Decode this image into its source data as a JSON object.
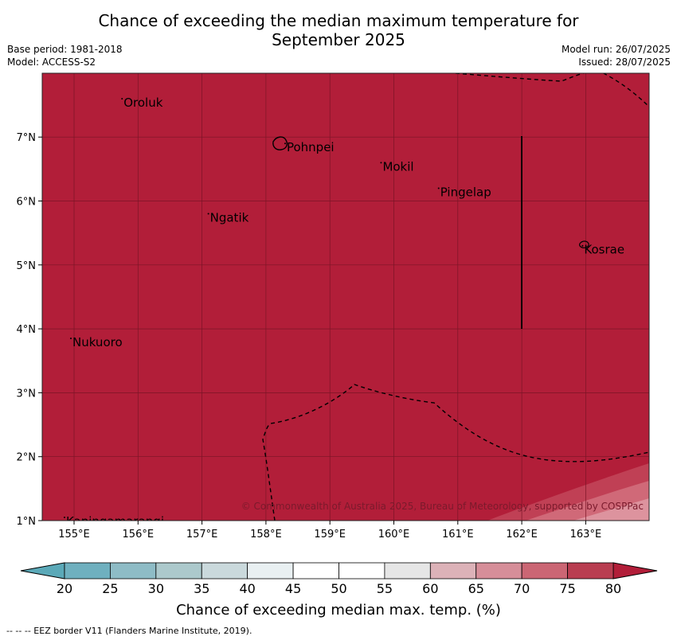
{
  "title_line1": "Chance of exceeding the median maximum temperature for",
  "title_line2": "September 2025",
  "meta_left": [
    "Base period: 1981-2018",
    "Model: ACCESS-S2"
  ],
  "meta_right": [
    "Model run: 26/07/2025",
    "Issued: 28/07/2025"
  ],
  "map": {
    "fill_color": "#b21e39",
    "lon_ticks": [
      "155°E",
      "156°E",
      "157°E",
      "158°E",
      "159°E",
      "160°E",
      "161°E",
      "162°E",
      "163°E"
    ],
    "lat_ticks": [
      "7°N",
      "6°N",
      "5°N",
      "4°N",
      "3°N",
      "2°N",
      "1°N"
    ],
    "places": [
      {
        "name": "Oroluk",
        "lon": 155.75,
        "lat": 7.6
      },
      {
        "name": "Pohnpei",
        "lon": 158.3,
        "lat": 6.9
      },
      {
        "name": "Mokil",
        "lon": 159.8,
        "lat": 6.6
      },
      {
        "name": "Pingelap",
        "lon": 160.7,
        "lat": 6.2
      },
      {
        "name": "Ngatik",
        "lon": 157.1,
        "lat": 5.8
      },
      {
        "name": "Kosrae",
        "lon": 162.95,
        "lat": 5.3
      },
      {
        "name": "Nukuoro",
        "lon": 154.95,
        "lat": 3.85
      },
      {
        "name": "Kapingamarangi",
        "lon": 154.85,
        "lat": 1.05
      }
    ],
    "copyright": "© Commonwealth of Australia 2025, Bureau of Meteorology, supported by COSPPac"
  },
  "colorbar": {
    "ticks": [
      "20",
      "25",
      "30",
      "35",
      "40",
      "45",
      "50",
      "55",
      "60",
      "65",
      "70",
      "75",
      "80"
    ],
    "colors": [
      "#6fb0bf",
      "#8ebcc6",
      "#acc9cc",
      "#cad9dc",
      "#e9f0f2",
      "#ffffff",
      "#ffffff",
      "#e6e6e6",
      "#dcb2b8",
      "#d68e99",
      "#cb6674",
      "#b93e51"
    ],
    "under_color": "#5ba9b8",
    "over_color": "#b21e39",
    "label": "Chance of exceeding median max. temp. (%)"
  },
  "footnote": "--  --  -- EEZ border V11 (Flanders Marine Institute, 2019)."
}
